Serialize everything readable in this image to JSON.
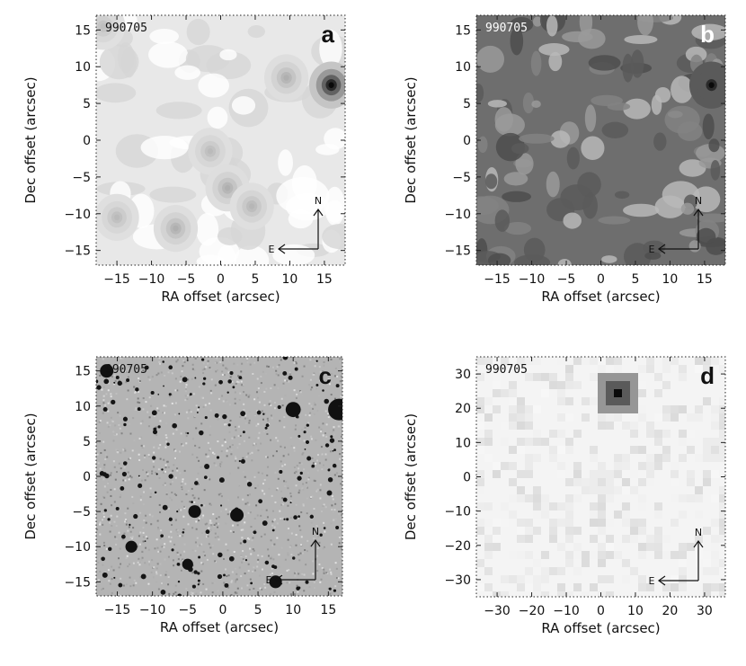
{
  "figure": {
    "panels": [
      {
        "letter": "a",
        "obs_label": "990705",
        "xlabel": "RA offset (arcsec)",
        "ylabel": "Dec offset (arcsec)",
        "xrange": [
          -18,
          18
        ],
        "yrange": [
          -17,
          17
        ],
        "xticks": [
          -15,
          -10,
          -5,
          0,
          5,
          10,
          15
        ],
        "yticks": [
          -15,
          -10,
          -5,
          0,
          5,
          10,
          15
        ],
        "style": "contour-light",
        "background": "#e8e8e8",
        "sources": [
          {
            "x": 16,
            "y": 7.5,
            "strength": 1.0
          },
          {
            "x": 9.5,
            "y": 8.5,
            "strength": 0.25
          },
          {
            "x": -1.5,
            "y": -1.5,
            "strength": 0.2
          },
          {
            "x": 1,
            "y": -6.5,
            "strength": 0.25
          },
          {
            "x": 4.5,
            "y": -9,
            "strength": 0.22
          },
          {
            "x": -6.5,
            "y": -12,
            "strength": 0.25
          },
          {
            "x": -15,
            "y": -10.5,
            "strength": 0.2
          },
          {
            "x": -17,
            "y": 15.5,
            "strength": 0.18
          }
        ],
        "compass": {
          "north": "N",
          "east": "E"
        }
      },
      {
        "letter": "b",
        "obs_label": "990705",
        "xlabel": "RA offset (arcsec)",
        "ylabel": "Dec offset (arcsec)",
        "xrange": [
          -18,
          18
        ],
        "yrange": [
          -17,
          17
        ],
        "xticks": [
          -15,
          -10,
          -5,
          0,
          5,
          10,
          15
        ],
        "yticks": [
          -15,
          -10,
          -5,
          0,
          5,
          10,
          15
        ],
        "style": "contour-dark",
        "background": "#6e6e6e",
        "sources": [
          {
            "x": 16,
            "y": 7.5,
            "strength": 1.0
          }
        ],
        "compass": {
          "north": "N",
          "east": "E"
        }
      },
      {
        "letter": "c",
        "obs_label": "990705",
        "xlabel": "RA offset (arcsec)",
        "ylabel": "Dec offset (arcsec)",
        "xrange": [
          -18,
          17
        ],
        "yrange": [
          -17,
          17
        ],
        "xticks": [
          -15,
          -10,
          -5,
          0,
          5,
          10,
          15
        ],
        "yticks": [
          -15,
          -10,
          -5,
          0,
          5,
          10,
          15
        ],
        "style": "optical",
        "background": "#b4b4b4",
        "sources": [
          {
            "x": 16.5,
            "y": 9.5,
            "strength": 1.0
          },
          {
            "x": 10,
            "y": 9.5,
            "strength": 0.6
          },
          {
            "x": -16.5,
            "y": 15,
            "strength": 0.5
          },
          {
            "x": 2,
            "y": -5.5,
            "strength": 0.5
          },
          {
            "x": -4,
            "y": -5,
            "strength": 0.45
          },
          {
            "x": 7.5,
            "y": -15,
            "strength": 0.45
          },
          {
            "x": -13,
            "y": -10,
            "strength": 0.4
          },
          {
            "x": -5,
            "y": -12.5,
            "strength": 0.35
          }
        ],
        "compass": {
          "north": "N",
          "east": "E"
        }
      },
      {
        "letter": "d",
        "obs_label": "990705",
        "xlabel": "RA offset (arcsec)",
        "ylabel": "Dec offset (arcsec)",
        "xrange": [
          -36,
          36
        ],
        "yrange": [
          -35,
          35
        ],
        "xticks": [
          -30,
          -20,
          -10,
          0,
          10,
          20,
          30
        ],
        "yticks": [
          -30,
          -20,
          -10,
          0,
          10,
          20,
          30
        ],
        "style": "pixelated",
        "background": "#f4f4f4",
        "sources": [
          {
            "x": 5,
            "y": 25,
            "strength": 1.0
          },
          {
            "x": 32,
            "y": 7.5,
            "strength": 0.35
          },
          {
            "x": 0,
            "y": -1,
            "strength": 0.12
          }
        ],
        "compass": {
          "north": "N",
          "east": "E"
        }
      }
    ]
  }
}
